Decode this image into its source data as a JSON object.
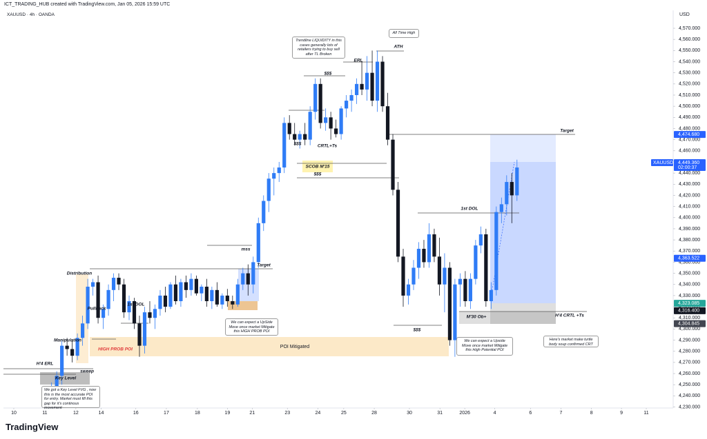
{
  "chart_data": {
    "type": "candlestick",
    "credit": "ICT_TRADING_HUB created with TradingView.com, Jan 05, 2026 15:59 UTC",
    "symbol_info": "XAUUSD · 4h · OANDA",
    "currency": "USD",
    "logo": "TradingView",
    "up_color": "#2f7cf6",
    "down_color": "#131722",
    "grid": false,
    "xlim": [
      -0.3,
      129.2
    ],
    "ylim": [
      4226,
      4583
    ],
    "xticks": [
      {
        "value": 1.7,
        "label": "10"
      },
      {
        "value": 7.7,
        "label": "11"
      },
      {
        "value": 13.7,
        "label": "12"
      },
      {
        "value": 18.6,
        "label": "14"
      },
      {
        "value": 25.3,
        "label": "16"
      },
      {
        "value": 31.2,
        "label": "17"
      },
      {
        "value": 37.2,
        "label": "18"
      },
      {
        "value": 43.0,
        "label": "19"
      },
      {
        "value": 47.8,
        "label": "21"
      },
      {
        "value": 54.6,
        "label": "23"
      },
      {
        "value": 60.5,
        "label": "24"
      },
      {
        "value": 65.5,
        "label": "25"
      },
      {
        "value": 71.4,
        "label": "28"
      },
      {
        "value": 78.2,
        "label": "30"
      },
      {
        "value": 84.1,
        "label": "31"
      },
      {
        "value": 88.9,
        "label": "2026"
      },
      {
        "value": 94.7,
        "label": "4"
      },
      {
        "value": 101.6,
        "label": "6"
      },
      {
        "value": 107.5,
        "label": "7"
      },
      {
        "value": 113.4,
        "label": "8"
      },
      {
        "value": 119.2,
        "label": "9"
      },
      {
        "value": 124.0,
        "label": "11"
      }
    ],
    "yticks": [
      {
        "value": 4230,
        "label": "4,230.000"
      },
      {
        "value": 4240,
        "label": "4,240.000"
      },
      {
        "value": 4250,
        "label": "4,250.000"
      },
      {
        "value": 4260,
        "label": "4,260.000"
      },
      {
        "value": 4270,
        "label": "4,270.000"
      },
      {
        "value": 4280,
        "label": "4,280.000"
      },
      {
        "value": 4290,
        "label": "4,290.000"
      },
      {
        "value": 4300,
        "label": "4,300.000"
      },
      {
        "value": 4310,
        "label": "4,310.000"
      },
      {
        "value": 4320,
        "label": "4,320.000"
      },
      {
        "value": 4330,
        "label": "4,330.000"
      },
      {
        "value": 4340,
        "label": "4,340.000"
      },
      {
        "value": 4350,
        "label": "4,350.000"
      },
      {
        "value": 4360,
        "label": "4,360.000"
      },
      {
        "value": 4370,
        "label": "4,370.000"
      },
      {
        "value": 4380,
        "label": "4,380.000"
      },
      {
        "value": 4390,
        "label": "4,390.000"
      },
      {
        "value": 4400,
        "label": "4,400.000"
      },
      {
        "value": 4410,
        "label": "4,410.000"
      },
      {
        "value": 4420,
        "label": "4,420.000"
      },
      {
        "value": 4430,
        "label": "4,430.000"
      },
      {
        "value": 4440,
        "label": "4,440.000"
      },
      {
        "value": 4450,
        "label": "4,450.000"
      },
      {
        "value": 4460,
        "label": "4,460.000"
      },
      {
        "value": 4470,
        "label": "4,470.000"
      },
      {
        "value": 4480,
        "label": "4,480.000"
      },
      {
        "value": 4490,
        "label": "4,490.000"
      },
      {
        "value": 4500,
        "label": "4,500.000"
      },
      {
        "value": 4510,
        "label": "4,510.000"
      },
      {
        "value": 4520,
        "label": "4,520.000"
      },
      {
        "value": 4530,
        "label": "4,530.000"
      },
      {
        "value": 4540,
        "label": "4,540.000"
      },
      {
        "value": 4550,
        "label": "4,550.000"
      },
      {
        "value": 4560,
        "label": "4,560.000"
      },
      {
        "value": 4570,
        "label": "4,570.000"
      }
    ],
    "x": [
      8,
      9,
      10,
      11,
      12,
      13,
      14,
      15,
      16,
      17,
      18,
      19,
      20,
      21,
      22,
      23,
      24,
      25,
      26,
      27,
      28,
      29,
      30,
      31,
      32,
      33,
      34,
      35,
      36,
      37,
      38,
      39,
      40,
      41,
      42,
      43,
      44,
      45,
      46,
      47,
      48,
      49,
      50,
      51,
      52,
      53,
      54,
      55,
      56,
      57,
      58,
      59,
      60,
      61,
      62,
      63,
      64,
      65,
      66,
      67,
      68,
      69,
      70,
      71,
      72,
      73,
      74,
      75,
      76,
      77,
      78,
      79,
      80,
      81,
      82,
      83,
      84,
      85,
      86,
      87,
      88,
      89,
      90,
      91,
      92,
      93,
      94,
      95,
      96,
      97,
      98,
      99
    ],
    "open": [
      4238,
      4243,
      4248,
      4258,
      4285,
      4282,
      4276,
      4292,
      4305,
      4338,
      4342,
      4310,
      4318,
      4335,
      4346,
      4340,
      4315,
      4325,
      4305,
      4285,
      4315,
      4310,
      4318,
      4330,
      4320,
      4340,
      4325,
      4342,
      4335,
      4345,
      4332,
      4338,
      4325,
      4335,
      4322,
      4330,
      4325,
      4322,
      4340,
      4350,
      4340,
      4360,
      4395,
      4415,
      4435,
      4440,
      4445,
      4485,
      4475,
      4470,
      4475,
      4470,
      4495,
      4520,
      4485,
      4490,
      4480,
      4475,
      4498,
      4505,
      4510,
      4520,
      4515,
      4530,
      4505,
      4540,
      4500,
      4470,
      4425,
      4365,
      4330,
      4340,
      4355,
      4372,
      4360,
      4385,
      4365,
      4340,
      4355,
      4290,
      4340,
      4345,
      4325,
      4345,
      4375,
      4385,
      4325,
      4335,
      4405,
      4412,
      4432,
      4420
    ],
    "high": [
      4245,
      4252,
      4262,
      4290,
      4292,
      4290,
      4296,
      4312,
      4345,
      4345,
      4348,
      4322,
      4340,
      4350,
      4350,
      4345,
      4330,
      4328,
      4312,
      4320,
      4325,
      4322,
      4335,
      4338,
      4342,
      4348,
      4345,
      4348,
      4350,
      4348,
      4340,
      4345,
      4338,
      4342,
      4332,
      4336,
      4330,
      4345,
      4355,
      4358,
      4365,
      4400,
      4420,
      4440,
      4445,
      4450,
      4490,
      4492,
      4485,
      4478,
      4485,
      4500,
      4525,
      4525,
      4498,
      4495,
      4488,
      4500,
      4510,
      4515,
      4525,
      4540,
      4545,
      4550,
      4550,
      4545,
      4512,
      4475,
      4432,
      4372,
      4345,
      4362,
      4378,
      4380,
      4395,
      4390,
      4382,
      4368,
      4360,
      4345,
      4350,
      4352,
      4350,
      4380,
      4392,
      4390,
      4342,
      4410,
      4418,
      4438,
      4440,
      4452
    ],
    "low": [
      4232,
      4240,
      4245,
      4250,
      4276,
      4270,
      4272,
      4285,
      4300,
      4330,
      4305,
      4300,
      4312,
      4325,
      4335,
      4310,
      4308,
      4300,
      4275,
      4278,
      4305,
      4300,
      4312,
      4315,
      4318,
      4322,
      4320,
      4328,
      4330,
      4330,
      4325,
      4320,
      4318,
      4320,
      4318,
      4320,
      4318,
      4320,
      4335,
      4330,
      4332,
      4355,
      4388,
      4405,
      4420,
      4432,
      4440,
      4470,
      4465,
      4462,
      4465,
      4465,
      4488,
      4480,
      4478,
      4470,
      4472,
      4470,
      4490,
      4495,
      4502,
      4510,
      4505,
      4500,
      4495,
      4495,
      4465,
      4420,
      4360,
      4320,
      4322,
      4335,
      4345,
      4355,
      4355,
      4360,
      4330,
      4315,
      4285,
      4275,
      4320,
      4320,
      4318,
      4340,
      4368,
      4320,
      4318,
      4330,
      4395,
      4402,
      4395,
      4415
    ],
    "close": [
      4243,
      4248,
      4258,
      4285,
      4282,
      4276,
      4292,
      4305,
      4338,
      4342,
      4310,
      4318,
      4335,
      4346,
      4340,
      4315,
      4325,
      4305,
      4285,
      4315,
      4310,
      4318,
      4330,
      4320,
      4340,
      4325,
      4342,
      4335,
      4345,
      4332,
      4338,
      4325,
      4335,
      4322,
      4330,
      4325,
      4322,
      4340,
      4350,
      4340,
      4360,
      4395,
      4415,
      4435,
      4440,
      4445,
      4485,
      4475,
      4470,
      4475,
      4470,
      4495,
      4520,
      4485,
      4490,
      4480,
      4475,
      4498,
      4505,
      4510,
      4520,
      4515,
      4530,
      4505,
      4540,
      4500,
      4470,
      4425,
      4365,
      4330,
      4340,
      4355,
      4372,
      4360,
      4385,
      4365,
      4340,
      4355,
      4290,
      4340,
      4345,
      4325,
      4345,
      4375,
      4385,
      4325,
      4335,
      4405,
      4412,
      4432,
      4420,
      4445
    ],
    "symbol_label": "XAUUSD",
    "countdown": "02:00:37",
    "price_labels": [
      {
        "value": 4474.68,
        "label": "4,474.680",
        "color": "#2962ff"
      },
      {
        "value": 4449.36,
        "label": "4,449.360",
        "color": "#2962ff"
      },
      {
        "value": 4363.522,
        "label": "4,363.522",
        "color": "#2962ff"
      },
      {
        "value": 4323.085,
        "label": "4,323.085",
        "color": "#26a69a"
      },
      {
        "value": 4316.4,
        "label": "4,316.400",
        "color": "#131722"
      },
      {
        "value": 4304.845,
        "label": "4,304.845",
        "color": "#434651"
      }
    ],
    "annotations": [
      "Trendline LIQUIDITY in this cases generally lots of retailers trying to buy sell after TL Broken",
      "$$$",
      "All Time High",
      "ATH",
      "ERL",
      "$$$",
      "CRTL+Ts",
      "SCOB M'15",
      "$$$",
      "Target",
      "1st DOL",
      "mss",
      "Target",
      "Distribution",
      "Pullback",
      "1st DOL",
      "Manipulation",
      "HIGH PROB POI",
      "POI Mitigated",
      "H'4 ERL",
      "sweep",
      "Key Level",
      "We got a Key Level FVG , now this is the most accurate POI for entry. Market must fill this gap for it's continous movement",
      "We can expect a UpSide Move once market Mitigate this HIGH PROB POI",
      "$$$",
      "M'30 Ob+",
      "H'4 CRTL +Ts",
      "We can expect a Upside Move once market Mitigate this High Potential POI",
      "Here's market make turtle body soup confirmed CRT"
    ]
  }
}
